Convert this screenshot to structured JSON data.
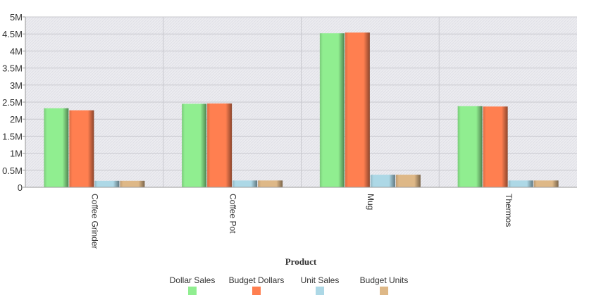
{
  "chart_data": {
    "type": "bar",
    "categories": [
      "Coffee Grinder",
      "Coffee Pot",
      "Mug",
      "Thermos"
    ],
    "series": [
      {
        "name": "Dollar Sales",
        "color": "#90ee90",
        "values": [
          2320000,
          2450000,
          4520000,
          2380000
        ]
      },
      {
        "name": "Budget Dollars",
        "color": "#ff7f50",
        "values": [
          2260000,
          2460000,
          4540000,
          2370000
        ]
      },
      {
        "name": "Unit Sales",
        "color": "#add8e6",
        "values": [
          190000,
          200000,
          370000,
          200000
        ]
      },
      {
        "name": "Budget Units",
        "color": "#deb887",
        "values": [
          190000,
          200000,
          370000,
          200000
        ]
      }
    ],
    "xlabel": "Product",
    "ylabel": "",
    "ylim": [
      0,
      5000000
    ],
    "yticks": [
      {
        "value": 0,
        "label": "0"
      },
      {
        "value": 500000,
        "label": "0.5M"
      },
      {
        "value": 1000000,
        "label": "1M"
      },
      {
        "value": 1500000,
        "label": "1.5M"
      },
      {
        "value": 2000000,
        "label": "2M"
      },
      {
        "value": 2500000,
        "label": "2.5M"
      },
      {
        "value": 3000000,
        "label": "3M"
      },
      {
        "value": 3500000,
        "label": "3.5M"
      },
      {
        "value": 4000000,
        "label": "4M"
      },
      {
        "value": 4500000,
        "label": "4.5M"
      },
      {
        "value": 5000000,
        "label": "5M"
      }
    ],
    "grid": true,
    "legend_position": "bottom"
  }
}
